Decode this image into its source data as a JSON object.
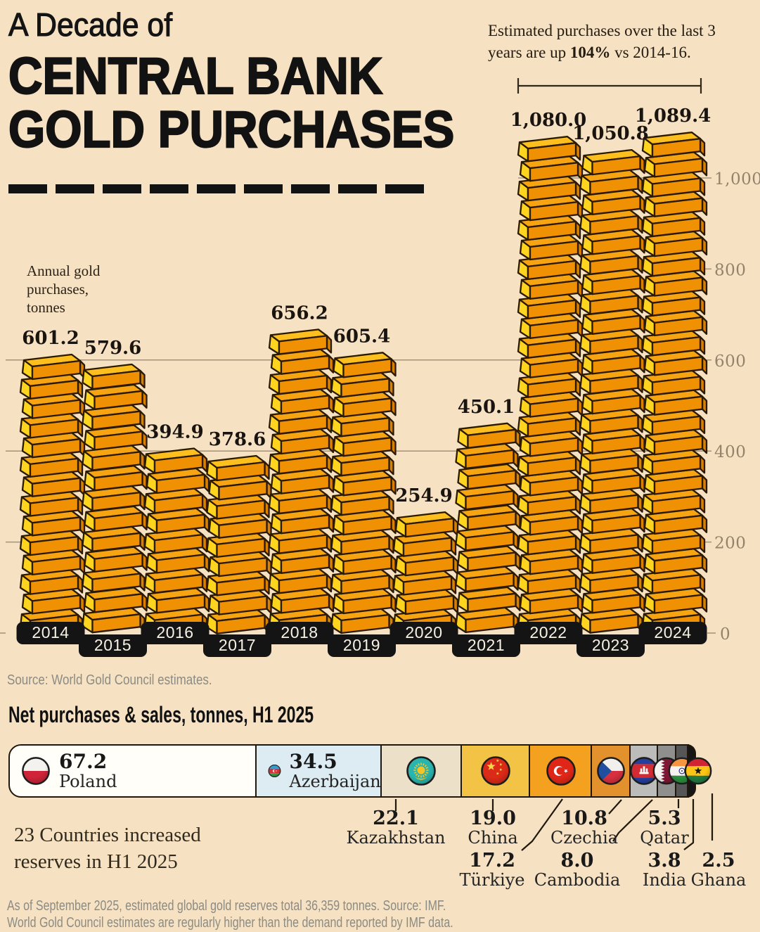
{
  "colors": {
    "background": "#f6e2c3",
    "ink": "#161616",
    "grid": "#a4937a",
    "axis_text": "#93836b",
    "muted_text": "#8b8b83",
    "pill_bg": "#141414",
    "pill_text": "#f7f1e4",
    "gold_end": "#ffd41f",
    "gold_top": "#f7a413",
    "gold_top_bright": "#fcbf1d",
    "gold_front": "#f09104",
    "gold_side": "#db8102",
    "gold_outline": "#2a1a04",
    "leader_line": "#20180c"
  },
  "header": {
    "title_line1": "A Decade of",
    "title_line2": "CENTRAL BANK",
    "title_line3": "GOLD PURCHASES"
  },
  "annotation": {
    "text_1": "Estimated purchases over the last 3 years are up ",
    "bold": "104%",
    "text_2": " vs 2014-16."
  },
  "chart_data": [
    {
      "type": "bar",
      "title": "Annual gold\npurchases,\ntonnes",
      "ylabel": "Annual gold purchases, tonnes",
      "categories": [
        "2014",
        "2015",
        "2016",
        "2017",
        "2018",
        "2019",
        "2020",
        "2021",
        "2022",
        "2023",
        "2024"
      ],
      "values": [
        601.2,
        579.6,
        394.9,
        378.6,
        656.2,
        605.4,
        254.9,
        450.1,
        1080.0,
        1050.8,
        1089.4
      ],
      "value_labels": [
        "601.2",
        "579.6",
        "394.9",
        "378.6",
        "656.2",
        "605.4",
        "254.9",
        "450.1",
        "1,080.0",
        "1,050.8",
        "1,089.4"
      ],
      "ylim": [
        0,
        1100
      ],
      "yticks": [
        0,
        200,
        400,
        600,
        800,
        1000
      ],
      "ytick_labels": [
        "0",
        "200",
        "400",
        "600",
        "800",
        "1,000"
      ],
      "grid": true,
      "legend": "none",
      "source": "Source: World Gold Council estimates."
    },
    {
      "type": "bar",
      "subtype": "stacked-horizontal",
      "title": "Net purchases & sales, tonnes, H1 2025",
      "note": "23 Countries increased\nreserves in H1 2025",
      "series": [
        {
          "name": "Poland",
          "value": 67.2,
          "label": "67.2",
          "color": "#fffef8",
          "flag": "poland",
          "label_inside": true
        },
        {
          "name": "Azerbaijan",
          "value": 34.5,
          "label": "34.5",
          "color": "#dcecf2",
          "flag": "azerbaijan",
          "label_inside": true
        },
        {
          "name": "Kazakhstan",
          "value": 22.1,
          "label": "22.1",
          "color": "#ece0c8",
          "flag": "kazakhstan"
        },
        {
          "name": "China",
          "value": 19.0,
          "label": "19.0",
          "color": "#f2c344",
          "flag": "china"
        },
        {
          "name": "Türkiye",
          "value": 17.2,
          "label": "17.2",
          "color": "#f4a11f",
          "flag": "turkiye"
        },
        {
          "name": "Czechia",
          "value": 10.8,
          "label": "10.8",
          "color": "#e3912c",
          "flag": "czechia"
        },
        {
          "name": "Cambodia",
          "value": 8.0,
          "label": "8.0",
          "color": "#bcbcba",
          "flag": "cambodia"
        },
        {
          "name": "Qatar",
          "value": 5.3,
          "label": "5.3",
          "color": "#8f8f8d",
          "flag": "qatar"
        },
        {
          "name": "India",
          "value": 3.8,
          "label": "3.8",
          "color": "#565656",
          "flag": "india"
        },
        {
          "name": "Ghana",
          "value": 2.5,
          "label": "2.5",
          "color": "#161616",
          "flag": "ghana"
        }
      ]
    }
  ],
  "footer": {
    "line1": "As of September 2025, estimated global gold reserves total 36,359 tonnes. Source: IMF.",
    "line2": "World Gold Council estimates are regularly higher than the demand reported by IMF data."
  }
}
